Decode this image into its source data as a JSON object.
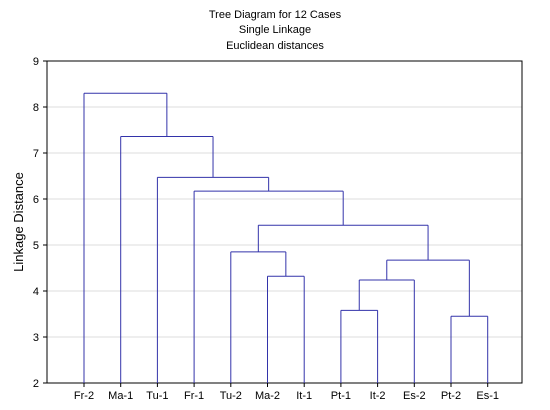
{
  "chart_data": {
    "type": "dendrogram",
    "title": "Tree Diagram for 12 Cases",
    "subtitle_lines": [
      "Single Linkage",
      "Euclidean distances"
    ],
    "ylabel": "Linkage Distance",
    "xlabel": "",
    "ylim": [
      2,
      9
    ],
    "yticks": [
      2,
      3,
      4,
      5,
      6,
      7,
      8,
      9
    ],
    "grid": true,
    "leaves": [
      "Fr-2",
      "Ma-1",
      "Tu-1",
      "Fr-1",
      "Tu-2",
      "Ma-2",
      "It-1",
      "Pt-1",
      "It-2",
      "Es-2",
      "Pt-2",
      "Es-1"
    ],
    "merges": [
      {
        "left": "Pt-2",
        "right": "Es-1",
        "distance": 3.45
      },
      {
        "left": "Pt-1",
        "right": "It-2",
        "distance": 3.58
      },
      {
        "left": "Pt-1/It-2",
        "right": "Es-2",
        "distance": 4.24
      },
      {
        "left": "Ma-2",
        "right": "It-1",
        "distance": 4.32
      },
      {
        "left": "Pt-1/It-2/Es-2",
        "right": "Pt-2/Es-1",
        "distance": 4.67
      },
      {
        "left": "Tu-2",
        "right": "Ma-2/It-1",
        "distance": 4.85
      },
      {
        "left": "Tu-2/Ma-2/It-1",
        "right": "Pt-1/It-2/Es-2/Pt-2/Es-1",
        "distance": 5.43
      },
      {
        "left": "Fr-1",
        "right": "Tu-2 ... Es-1",
        "distance": 6.17
      },
      {
        "left": "Tu-1",
        "right": "Fr-1 ... Es-1",
        "distance": 6.47
      },
      {
        "left": "Ma-1",
        "right": "Tu-1 ... Es-1",
        "distance": 7.36
      },
      {
        "left": "Fr-2",
        "right": "Ma-1 ... Es-1",
        "distance": 8.3
      }
    ],
    "line_color": "#3333aa"
  }
}
